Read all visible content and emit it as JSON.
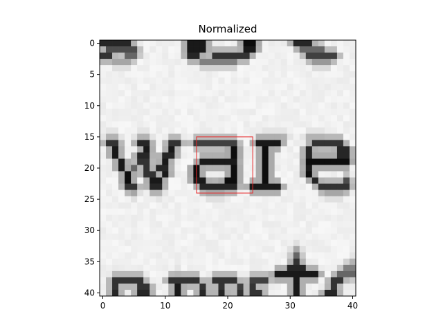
{
  "title": "Normalized",
  "chart_data": {
    "type": "heatmap",
    "title": "Normalized",
    "colormap": "gray_r",
    "image_shape": [
      41,
      41
    ],
    "xlim": [
      -0.5,
      40.5
    ],
    "ylim": [
      40.5,
      -0.5
    ],
    "x_ticks": [
      0,
      10,
      20,
      30,
      40
    ],
    "y_ticks": [
      0,
      5,
      10,
      15,
      20,
      25,
      30,
      35,
      40
    ],
    "grid": false,
    "rectangle": {
      "x": 15,
      "y": 15,
      "width": 9,
      "height": 9,
      "color": "#e8282a"
    },
    "glyph_strokes": [
      {
        "row": 0,
        "ink": [
          [
            0,
            5,
            0.85
          ],
          [
            14,
            17,
            0.9
          ],
          [
            23,
            25,
            0.95
          ],
          [
            31,
            34,
            0.85
          ]
        ]
      },
      {
        "row": 1,
        "ink": [
          [
            1,
            6,
            0.7
          ],
          [
            14,
            17,
            0.9
          ],
          [
            23,
            25,
            0.9
          ],
          [
            32,
            36,
            0.6
          ]
        ]
      },
      {
        "row": 2,
        "ink": [
          [
            0,
            2,
            0.8
          ],
          [
            4,
            6,
            0.6
          ],
          [
            14,
            16,
            0.85
          ],
          [
            18,
            24,
            0.8
          ],
          [
            33,
            38,
            0.75
          ]
        ]
      },
      {
        "row": 3,
        "ink": [
          [
            2,
            5,
            0.35
          ],
          [
            16,
            22,
            0.5
          ],
          [
            34,
            37,
            0.4
          ]
        ]
      },
      {
        "row": 15,
        "ink": [
          [
            1,
            3,
            0.3
          ],
          [
            6,
            8,
            0.3
          ],
          [
            26,
            30,
            0.3
          ],
          [
            33,
            36,
            0.3
          ]
        ]
      },
      {
        "row": 16,
        "ink": [
          [
            1,
            3,
            0.8
          ],
          [
            6,
            8,
            0.85
          ],
          [
            11,
            13,
            0.8
          ],
          [
            15,
            22,
            0.75
          ],
          [
            25,
            29,
            0.9
          ],
          [
            34,
            39,
            0.8
          ]
        ]
      },
      {
        "row": 17,
        "ink": [
          [
            2,
            3,
            0.9
          ],
          [
            7,
            8,
            0.9
          ],
          [
            11,
            12,
            0.9
          ],
          [
            21,
            22,
            0.95
          ],
          [
            26,
            27,
            0.95
          ],
          [
            33,
            34,
            0.85
          ],
          [
            38,
            40,
            0.85
          ]
        ]
      },
      {
        "row": 18,
        "ink": [
          [
            2,
            3,
            0.9
          ],
          [
            6,
            8,
            0.85
          ],
          [
            10,
            12,
            0.85
          ],
          [
            21,
            22,
            0.95
          ],
          [
            26,
            27,
            0.95
          ],
          [
            33,
            34,
            0.85
          ],
          [
            38,
            40,
            0.85
          ]
        ]
      },
      {
        "row": 19,
        "ink": [
          [
            3,
            4,
            0.9
          ],
          [
            6,
            8,
            0.8
          ],
          [
            10,
            11,
            0.9
          ],
          [
            16,
            22,
            0.9
          ],
          [
            26,
            27,
            0.95
          ],
          [
            33,
            40,
            0.95
          ]
        ]
      },
      {
        "row": 20,
        "ink": [
          [
            3,
            4,
            0.9
          ],
          [
            5,
            6,
            0.6
          ],
          [
            7,
            8,
            0.8
          ],
          [
            9,
            11,
            0.85
          ],
          [
            15,
            16,
            0.95
          ],
          [
            21,
            22,
            0.95
          ],
          [
            26,
            27,
            0.95
          ],
          [
            33,
            34,
            0.9
          ]
        ]
      },
      {
        "row": 21,
        "ink": [
          [
            4,
            5,
            0.95
          ],
          [
            7,
            9,
            0.8
          ],
          [
            10,
            11,
            0.9
          ],
          [
            15,
            16,
            0.95
          ],
          [
            21,
            22,
            0.95
          ],
          [
            26,
            27,
            0.95
          ],
          [
            33,
            34,
            0.95
          ]
        ]
      },
      {
        "row": 22,
        "ink": [
          [
            4,
            5,
            0.95
          ],
          [
            8,
            10,
            0.9
          ],
          [
            15,
            17,
            0.9
          ],
          [
            20,
            22,
            0.95
          ],
          [
            26,
            27,
            0.95
          ],
          [
            34,
            35,
            0.85
          ],
          [
            39,
            40,
            0.7
          ]
        ]
      },
      {
        "row": 23,
        "ink": [
          [
            4,
            6,
            0.8
          ],
          [
            8,
            10,
            0.85
          ],
          [
            16,
            22,
            0.85
          ],
          [
            24,
            29,
            0.9
          ],
          [
            35,
            40,
            0.8
          ]
        ]
      },
      {
        "row": 24,
        "ink": [
          [
            5,
            6,
            0.35
          ],
          [
            9,
            10,
            0.3
          ],
          [
            17,
            20,
            0.35
          ],
          [
            36,
            39,
            0.35
          ]
        ]
      },
      {
        "row": 33,
        "ink": [
          [
            31,
            32,
            0.35
          ]
        ]
      },
      {
        "row": 34,
        "ink": [
          [
            31,
            32,
            0.6
          ]
        ]
      },
      {
        "row": 35,
        "ink": [
          [
            31,
            32,
            0.8
          ],
          [
            40,
            41,
            0.3
          ]
        ]
      },
      {
        "row": 36,
        "ink": [
          [
            30,
            33,
            0.85
          ],
          [
            39,
            41,
            0.5
          ]
        ]
      },
      {
        "row": 37,
        "ink": [
          [
            2,
            3,
            0.25
          ],
          [
            12,
            13,
            0.3
          ],
          [
            28,
            35,
            0.9
          ],
          [
            38,
            41,
            0.6
          ]
        ]
      },
      {
        "row": 38,
        "ink": [
          [
            2,
            7,
            0.8
          ],
          [
            11,
            16,
            0.8
          ],
          [
            18,
            22,
            0.8
          ],
          [
            24,
            27,
            0.75
          ],
          [
            31,
            32,
            0.9
          ],
          [
            37,
            39,
            0.8
          ]
        ]
      },
      {
        "row": 39,
        "ink": [
          [
            2,
            3,
            0.8
          ],
          [
            6,
            8,
            0.8
          ],
          [
            12,
            13,
            0.9
          ],
          [
            16,
            17,
            0.8
          ],
          [
            19,
            20,
            0.8
          ],
          [
            22,
            23,
            0.75
          ],
          [
            24,
            25,
            0.8
          ],
          [
            31,
            32,
            0.9
          ],
          [
            37,
            38,
            0.8
          ]
        ]
      },
      {
        "row": 40,
        "ink": [
          [
            2,
            3,
            0.85
          ],
          [
            6,
            8,
            0.85
          ],
          [
            12,
            13,
            0.9
          ],
          [
            16,
            17,
            0.85
          ],
          [
            19,
            20,
            0.85
          ],
          [
            22,
            23,
            0.8
          ],
          [
            24,
            26,
            0.8
          ],
          [
            31,
            32,
            0.9
          ],
          [
            36,
            38,
            0.85
          ]
        ]
      }
    ]
  }
}
